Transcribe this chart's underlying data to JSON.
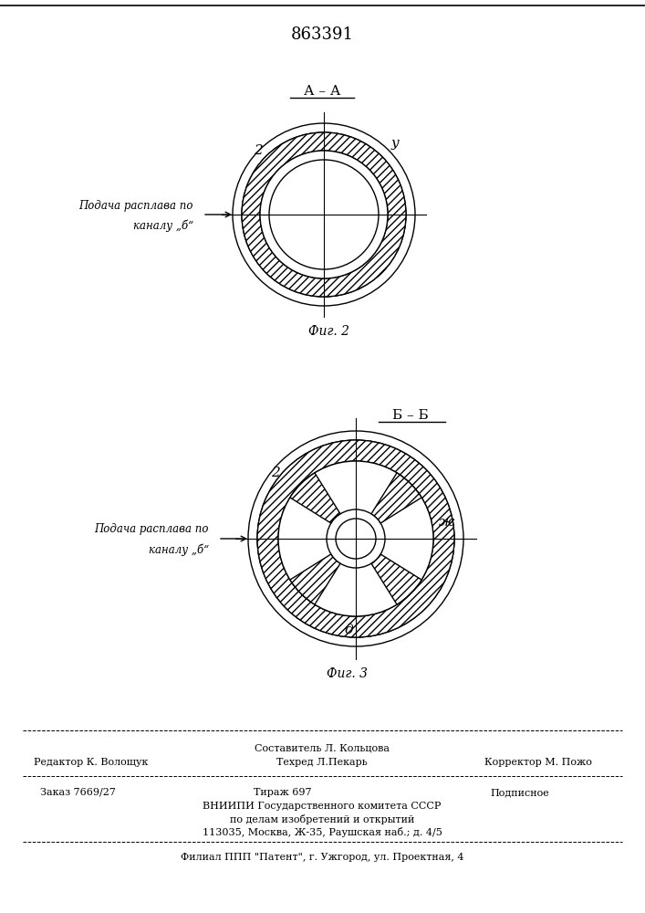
{
  "title": "863391",
  "fig2_title": "А – А",
  "fig2_caption": "Фиг. 2",
  "fig3_title": "Б – Б",
  "fig3_caption": "Фиг. 3",
  "fig2_label_arrow_line1": "Подача расплава по",
  "fig2_label_arrow_line2": "каналу „б“",
  "fig2_label_2": "2",
  "fig2_label_y": "у",
  "fig3_label_2": "2",
  "fig3_label_zh": "ж",
  "fig3_label_d": "д",
  "footer_line1": "Составитель Л. Кольцова",
  "footer_editor": "Редактор К. Волощук",
  "footer_tech": "Техред Л.Пекарь",
  "footer_corrector": "Корректор М. Пожо",
  "footer_order": "Заказ 7669/27",
  "footer_print": "Тираж 697",
  "footer_subscription": "Подписное",
  "footer_org1": "ВНИИПИ Государственного комитета СССР",
  "footer_org2": "по делам изобретений и открытий",
  "footer_org3": "113035, Москва, Ж-35, Раушская наб.; д. 4/5",
  "footer_branch": "Филиал ППП \"Патент\", г. Ужгород, ул. Проектная, 4",
  "bg_color": "#ffffff",
  "line_color": "#000000"
}
